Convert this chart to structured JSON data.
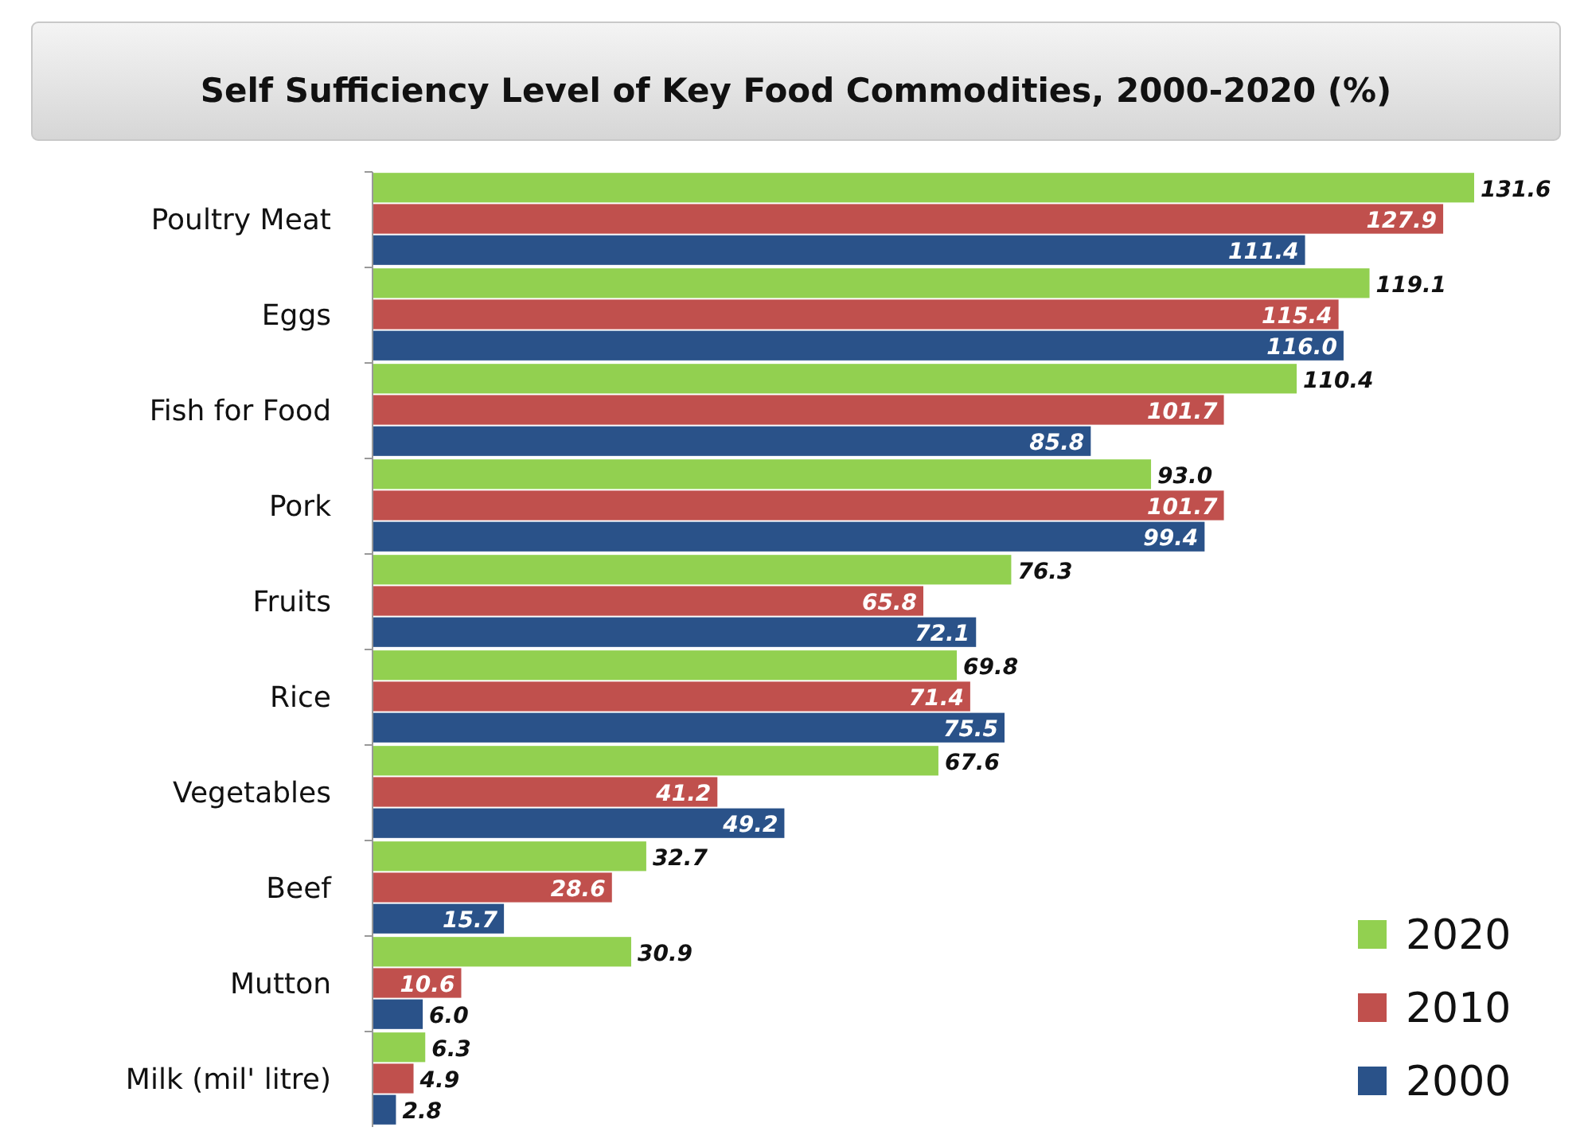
{
  "chart_data": {
    "type": "bar",
    "orientation": "horizontal",
    "title": "Self Sufficiency Level of Key Food Commodities, 2000-2020 (%)",
    "categories": [
      "Poultry Meat",
      "Eggs",
      "Fish for Food",
      "Pork",
      "Fruits",
      "Rice",
      "Vegetables",
      "Beef",
      "Mutton",
      "Milk (mil' litre)"
    ],
    "series": [
      {
        "name": "2020",
        "color": "#92d050",
        "values": [
          131.6,
          119.1,
          110.4,
          93,
          76.3,
          69.8,
          67.6,
          32.7,
          30.9,
          6.3
        ],
        "value_labels": [
          "131.6",
          "119.1",
          "110.4",
          "93.0",
          "76.3",
          "69.8",
          "67.6",
          "32.7",
          "30.9",
          "6.3"
        ]
      },
      {
        "name": "2010",
        "color": "#c0504d",
        "values": [
          127.9,
          115.4,
          101.7,
          101.7,
          65.8,
          71.4,
          41.2,
          28.6,
          10.6,
          4.9
        ],
        "value_labels": [
          "127.9",
          "115.4",
          "101.7",
          "101.7",
          "65.8",
          "71.4",
          "41.2",
          "28.6",
          "10.6",
          "4.9"
        ]
      },
      {
        "name": "2000",
        "color": "#2a5289",
        "values": [
          111.4,
          116,
          85.8,
          99.4,
          72.1,
          75.5,
          49.2,
          15.7,
          6,
          2.8
        ],
        "value_labels": [
          "111.4",
          "116.0",
          "85.8",
          "99.4",
          "72.1",
          "75.5",
          "49.2",
          "15.7",
          "6.0",
          "2.8"
        ]
      }
    ],
    "legend": "bottom right"
  }
}
